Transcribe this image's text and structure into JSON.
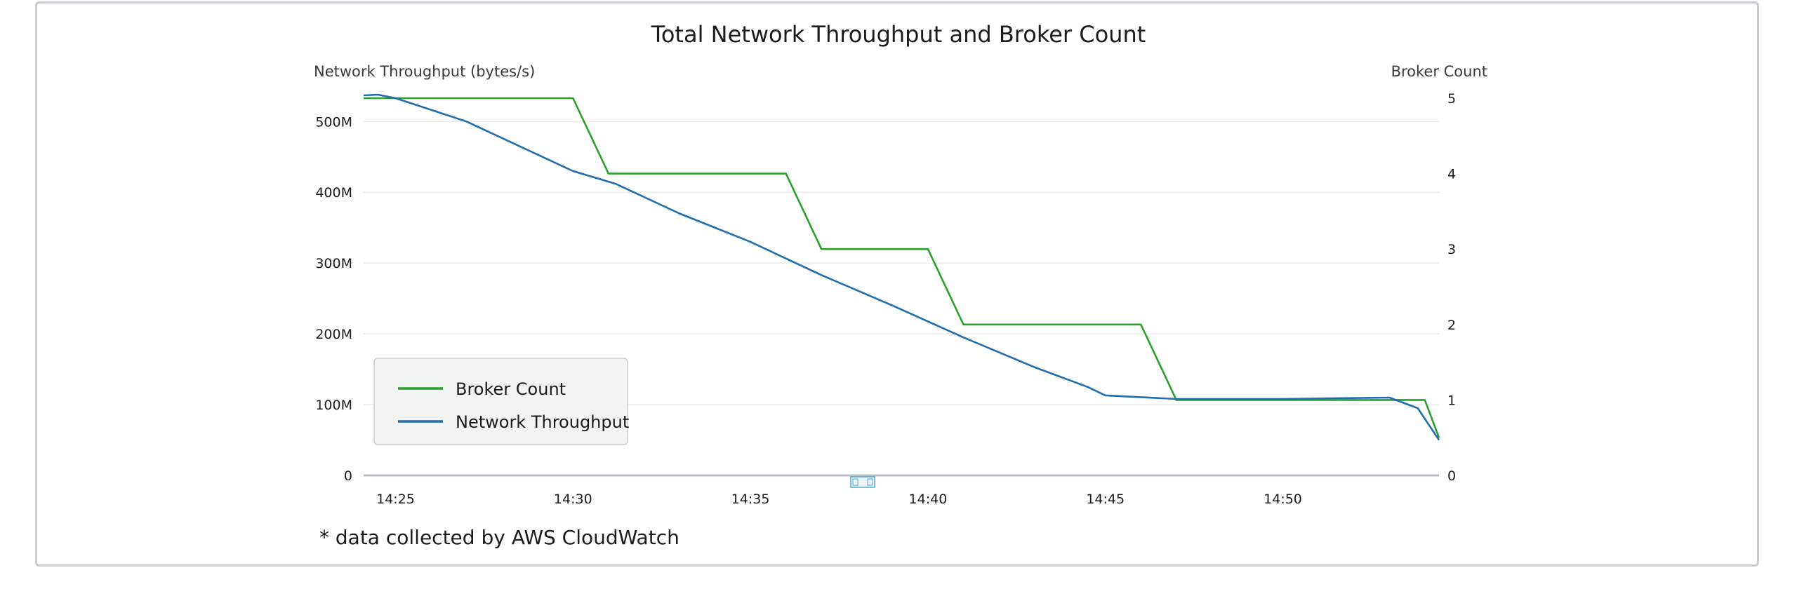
{
  "chart_data": {
    "type": "line",
    "title": "Total Network Throughput and Broker Count",
    "left_axis": {
      "label": "Network Throughput (bytes/s)",
      "ticks": [
        "0",
        "100M",
        "200M",
        "300M",
        "400M",
        "500M"
      ],
      "tick_values": [
        0,
        100,
        200,
        300,
        400,
        500
      ],
      "range": [
        0,
        533
      ]
    },
    "right_axis": {
      "label": "Broker Count",
      "ticks": [
        "0",
        "1",
        "2",
        "3",
        "4",
        "5"
      ],
      "tick_values": [
        0,
        1,
        2,
        3,
        4,
        5
      ],
      "range": [
        0,
        5
      ]
    },
    "x_axis": {
      "ticks": [
        "14:25",
        "14:30",
        "14:35",
        "14:40",
        "14:45",
        "14:50"
      ],
      "tick_values": [
        25,
        30,
        35,
        40,
        45,
        50
      ],
      "range": [
        24.1,
        54.4
      ]
    },
    "series": [
      {
        "name": "Broker Count",
        "axis": "right",
        "color": "#2ca02c",
        "x": [
          24.1,
          30.0,
          31.0,
          36.0,
          37.0,
          40.0,
          41.0,
          46.0,
          47.0,
          54.0,
          54.4
        ],
        "y": [
          5,
          5,
          4,
          4,
          3,
          3,
          2,
          2,
          1,
          1,
          0.5
        ]
      },
      {
        "name": "Network Throughput",
        "axis": "left",
        "color": "#1f6fb0",
        "x": [
          24.1,
          24.5,
          25.0,
          27.0,
          30.0,
          31.2,
          33.0,
          35.0,
          37.0,
          39.0,
          41.0,
          43.0,
          44.5,
          45.0,
          47.0,
          50.0,
          53.0,
          53.8,
          54.4
        ],
        "y": [
          537,
          538,
          533,
          500,
          430,
          412,
          370,
          330,
          283,
          240,
          195,
          153,
          125,
          113,
          108,
          108,
          110,
          95,
          50
        ]
      }
    ],
    "legend": {
      "position": "bottom-left",
      "entries": [
        "Broker Count",
        "Network Throughput"
      ]
    },
    "grid": true,
    "footnote": "* data collected by AWS CloudWatch"
  }
}
